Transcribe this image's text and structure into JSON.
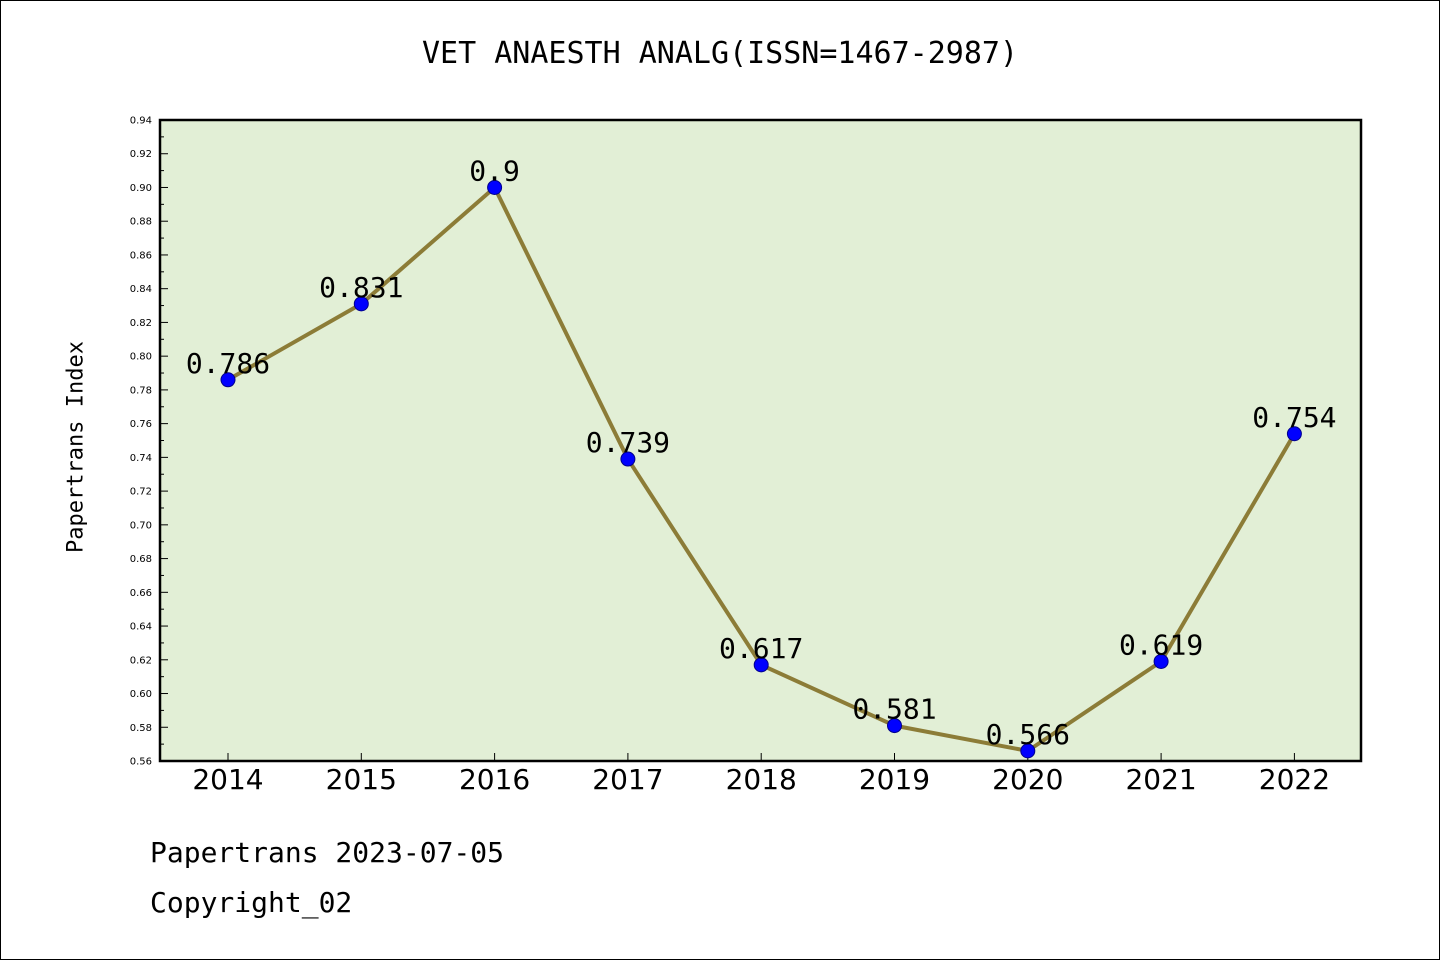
{
  "chart_data": {
    "type": "line",
    "title": "VET ANAESTH ANALG(ISSN=1467-2987)",
    "ylabel": "Papertrans Index",
    "xlabel": "",
    "categories": [
      "2014",
      "2015",
      "2016",
      "2017",
      "2018",
      "2019",
      "2020",
      "2021",
      "2022"
    ],
    "values": [
      0.786,
      0.831,
      0.9,
      0.739,
      0.617,
      0.581,
      0.566,
      0.619,
      0.754
    ],
    "data_labels": [
      "0.786",
      "0.831",
      "0.9",
      "0.739",
      "0.617",
      "0.581",
      "0.566",
      "0.619",
      "0.754"
    ],
    "ylim": [
      0.56,
      0.94
    ],
    "yticks": [
      "0.56",
      "0.58",
      "0.60",
      "0.62",
      "0.64",
      "0.66",
      "0.68",
      "0.70",
      "0.72",
      "0.74",
      "0.76",
      "0.78",
      "0.80",
      "0.82",
      "0.84",
      "0.86",
      "0.88",
      "0.90",
      "0.92",
      "0.94"
    ],
    "grid": false,
    "colors": {
      "plot_background": "#e2efd6",
      "line": "#8c7c37",
      "marker": "#0000ff"
    }
  },
  "footer": {
    "line1": "Papertrans 2023-07-05",
    "line2": "Copyright_02"
  }
}
